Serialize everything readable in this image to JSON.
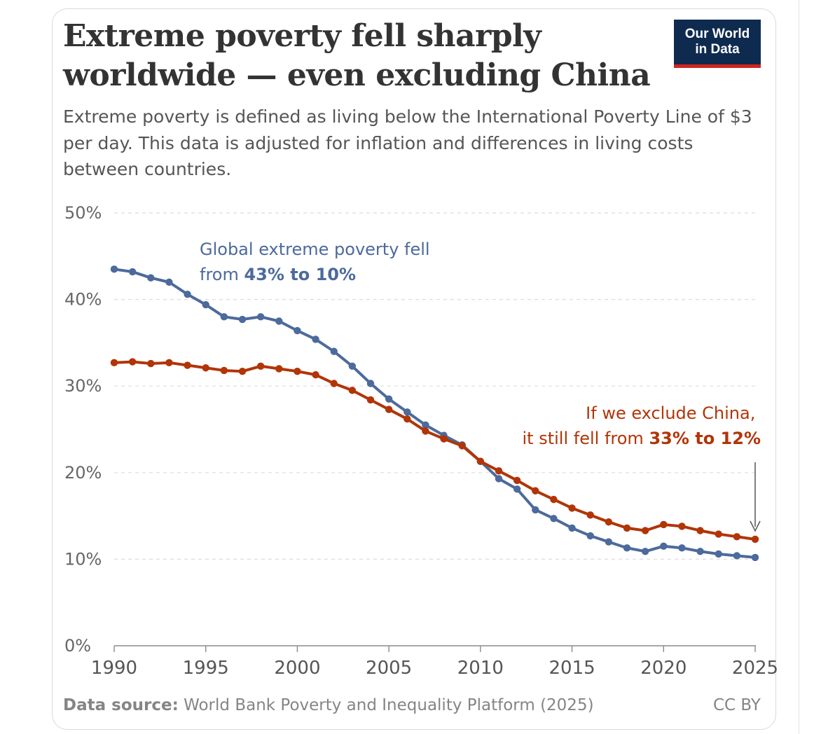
{
  "header": {
    "title_line1": "Extreme poverty fell sharply",
    "title_line2": "worldwide — even excluding China",
    "subtitle": "Extreme poverty is defined as living below the International Poverty Line of $3 per day. This data is adjusted for inflation and differences in living costs between countries."
  },
  "logo": {
    "line1": "Our World",
    "line2": "in Data",
    "bg": "#0f2a4f",
    "accent": "#ce261e"
  },
  "footer": {
    "source_label": "Data source:",
    "source_text": " World Bank Poverty and Inequality Platform (2025)",
    "license": "CC BY"
  },
  "chart_data": {
    "type": "line",
    "title": "Extreme poverty fell sharply worldwide — even excluding China",
    "xlabel": "",
    "ylabel": "",
    "xlim": [
      1990,
      2025
    ],
    "ylim": [
      0,
      50
    ],
    "x_ticks": [
      1990,
      1995,
      2000,
      2005,
      2010,
      2015,
      2020,
      2025
    ],
    "y_ticks": [
      0,
      10,
      20,
      30,
      40,
      50
    ],
    "y_tick_labels": [
      "0%",
      "10%",
      "20%",
      "30%",
      "40%",
      "50%"
    ],
    "grid": true,
    "x": [
      1990,
      1991,
      1992,
      1993,
      1994,
      1995,
      1996,
      1997,
      1998,
      1999,
      2000,
      2001,
      2002,
      2003,
      2004,
      2005,
      2006,
      2007,
      2008,
      2009,
      2010,
      2011,
      2012,
      2013,
      2014,
      2015,
      2016,
      2017,
      2018,
      2019,
      2020,
      2021,
      2022,
      2023,
      2024,
      2025
    ],
    "series": [
      {
        "name": "Global",
        "color": "#4c6a9c",
        "values": [
          43.5,
          43.2,
          42.5,
          42.0,
          40.6,
          39.4,
          38.0,
          37.7,
          38.0,
          37.5,
          36.4,
          35.4,
          34.0,
          32.3,
          30.3,
          28.5,
          27.0,
          25.5,
          24.3,
          23.2,
          21.3,
          19.3,
          18.1,
          15.7,
          14.7,
          13.6,
          12.7,
          12.0,
          11.3,
          10.9,
          11.5,
          11.3,
          10.9,
          10.6,
          10.4,
          10.2
        ]
      },
      {
        "name": "Excluding China",
        "color": "#b13507",
        "values": [
          32.7,
          32.8,
          32.6,
          32.7,
          32.4,
          32.1,
          31.8,
          31.7,
          32.3,
          32.0,
          31.7,
          31.3,
          30.3,
          29.5,
          28.4,
          27.3,
          26.2,
          24.8,
          23.9,
          23.1,
          21.3,
          20.2,
          19.1,
          17.9,
          16.9,
          15.9,
          15.1,
          14.3,
          13.6,
          13.3,
          14.0,
          13.8,
          13.3,
          12.9,
          12.6,
          12.3
        ]
      }
    ],
    "annotations": [
      {
        "series": "Global",
        "line1": "Global extreme poverty fell",
        "line2_prefix": "from ",
        "line2_bold": "43% to 10%"
      },
      {
        "series": "Excluding China",
        "line1": "If we exclude China,",
        "line2_prefix": "it still fell from ",
        "line2_bold": "33% to 12%"
      }
    ]
  }
}
